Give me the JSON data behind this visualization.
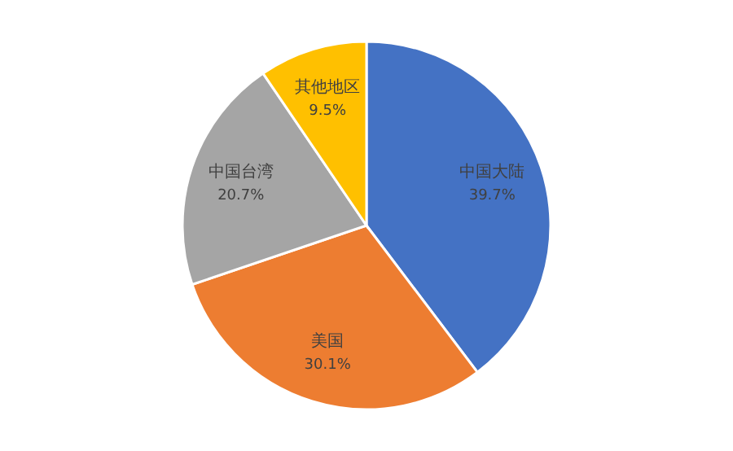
{
  "chart_data": {
    "type": "pie",
    "categories": [
      "中国大陆",
      "美国",
      "中国台湾",
      "其他地区"
    ],
    "values": [
      39.7,
      30.1,
      20.7,
      9.5
    ],
    "colors": [
      "#4472c4",
      "#ed7d31",
      "#a5a5a5",
      "#ffc000"
    ],
    "value_labels": [
      "39.7%",
      "30.1%",
      "20.7%",
      "9.5%"
    ],
    "legend": false
  }
}
